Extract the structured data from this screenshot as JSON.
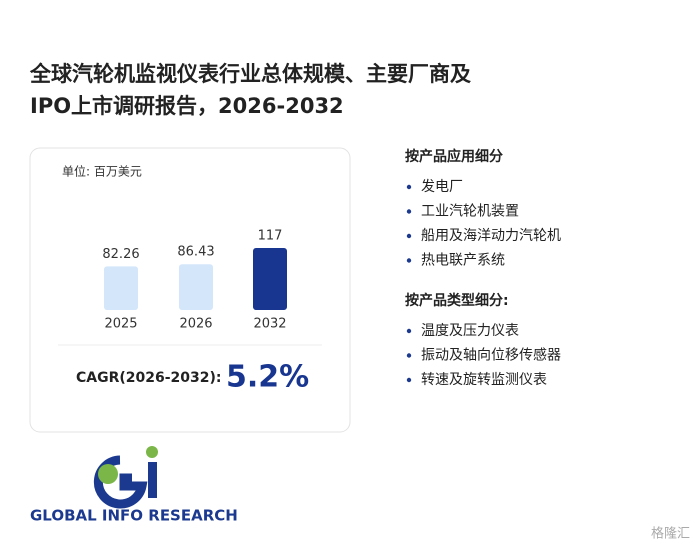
{
  "title": "全球汽轮机监视仪表行业总体规模、主要厂商及IPO上市调研报告，2026-2032",
  "chart_data": {
    "type": "bar",
    "unit_label": "单位: 百万美元",
    "categories": [
      "2025",
      "2026",
      "2032"
    ],
    "series": [
      {
        "name": null,
        "values": [
          82.26,
          86.43,
          117
        ]
      }
    ],
    "colors": [
      "#d3e6fa",
      "#d3e6fa",
      "#183690"
    ],
    "cagr_label": "CAGR(2026-2032):",
    "cagr": "5.2%"
  },
  "sections": [
    {
      "heading": "按产品应用细分",
      "items": [
        "发电厂",
        "工业汽轮机装置",
        "船用及海洋动力汽轮机",
        "热电联产系统"
      ]
    },
    {
      "heading": "按产品类型细分:",
      "items": [
        "温度及压力仪表",
        "振动及轴向位移传感器",
        "转速及旋转监测仪表"
      ]
    }
  ],
  "logo_text": "GLOBAL INFO RESEARCH",
  "watermark": "格隆汇"
}
